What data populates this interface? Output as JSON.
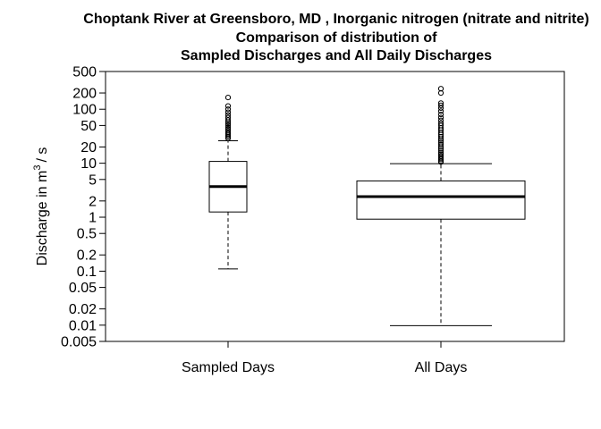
{
  "chart_data": {
    "type": "boxplot",
    "title_lines": [
      "Choptank River at Greensboro, MD , Inorganic nitrogen (nitrate and nitrite)",
      "Comparison of distribution of",
      "Sampled Discharges and All Daily Discharges"
    ],
    "ylabel": "Discharge in m",
    "ylabel_sup": "3",
    "ylabel_tail": "/ s",
    "y_scale": "log",
    "ylim": [
      0.005,
      500
    ],
    "y_ticks": [
      0.005,
      0.01,
      0.02,
      0.05,
      0.1,
      0.2,
      0.5,
      1,
      2,
      5,
      10,
      20,
      50,
      100,
      200,
      500
    ],
    "y_tick_labels": [
      "0.005",
      "0.01",
      "0.02",
      "0.05",
      "0.1",
      "0.2",
      "0.5",
      "1",
      "2",
      "5",
      "10",
      "20",
      "50",
      "100",
      "200",
      "500"
    ],
    "categories": [
      "Sampled Days",
      "All Days"
    ],
    "boxes": [
      {
        "category": "Sampled Days",
        "whisker_low": 0.11,
        "q1": 1.25,
        "median": 3.7,
        "q3": 10.8,
        "whisker_high": 26,
        "outliers": [
          29,
          31,
          33,
          35,
          37,
          40,
          43,
          46,
          50,
          54,
          58,
          63,
          70,
          78,
          88,
          100,
          115,
          165
        ]
      },
      {
        "category": "All Days",
        "whisker_low": 0.0098,
        "q1": 0.92,
        "median": 2.4,
        "q3": 4.7,
        "whisker_high": 9.8,
        "outliers": [
          10.5,
          11,
          11.8,
          12.5,
          13.5,
          14.5,
          15.5,
          17,
          18.5,
          20,
          22,
          24,
          26,
          28,
          31,
          34,
          37,
          41,
          45,
          50,
          55,
          62,
          70,
          80,
          92,
          105,
          118,
          130,
          200,
          240
        ]
      }
    ],
    "grid": false,
    "legend": "none"
  }
}
